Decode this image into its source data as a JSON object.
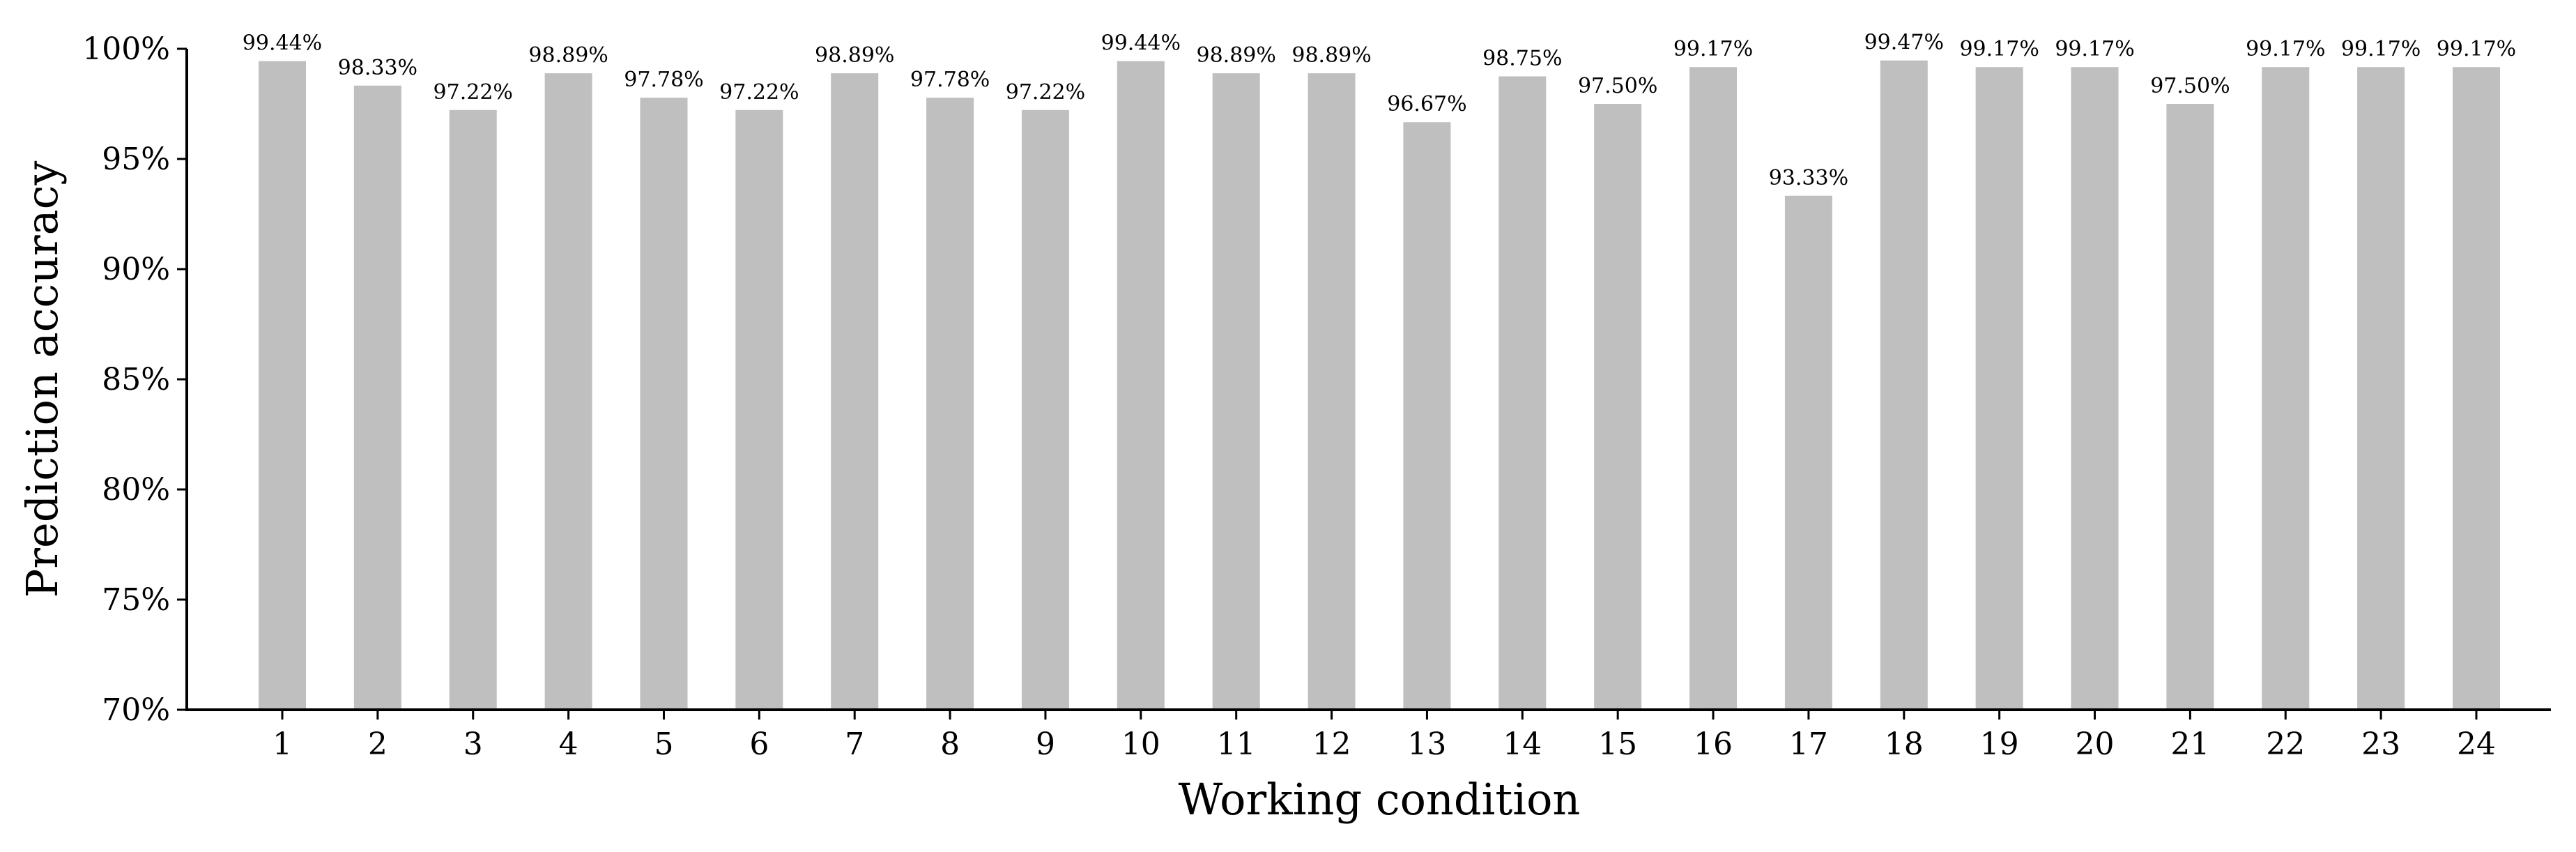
{
  "chart_data": {
    "type": "bar",
    "title": "",
    "xlabel": "Working condition",
    "ylabel": "Prediction accuracy",
    "categories": [
      "1",
      "2",
      "3",
      "4",
      "5",
      "6",
      "7",
      "8",
      "9",
      "10",
      "11",
      "12",
      "13",
      "14",
      "15",
      "16",
      "17",
      "18",
      "19",
      "20",
      "21",
      "22",
      "23",
      "24"
    ],
    "values": [
      99.44,
      98.33,
      97.22,
      98.89,
      97.78,
      97.22,
      98.89,
      97.78,
      97.22,
      99.44,
      98.89,
      98.89,
      96.67,
      98.75,
      97.5,
      99.17,
      93.33,
      99.47,
      99.17,
      99.17,
      97.5,
      99.17,
      99.17,
      99.17
    ],
    "data_labels": [
      "99.44%",
      "98.33%",
      "97.22%",
      "98.89%",
      "97.78%",
      "97.22%",
      "98.89%",
      "97.78%",
      "97.22%",
      "99.44%",
      "98.89%",
      "98.89%",
      "96.67%",
      "98.75%",
      "97.50%",
      "99.17%",
      "93.33%",
      "99.47%",
      "99.17%",
      "99.17%",
      "97.50%",
      "99.17%",
      "99.17%",
      "99.17%"
    ],
    "ylim": [
      70,
      100
    ],
    "yticks": [
      70,
      75,
      80,
      85,
      90,
      95,
      100
    ],
    "ytick_labels": [
      "70%",
      "75%",
      "80%",
      "85%",
      "90%",
      "95%",
      "100%"
    ],
    "bar_color": "#bfbfbf",
    "grid": false,
    "legend": "none"
  }
}
